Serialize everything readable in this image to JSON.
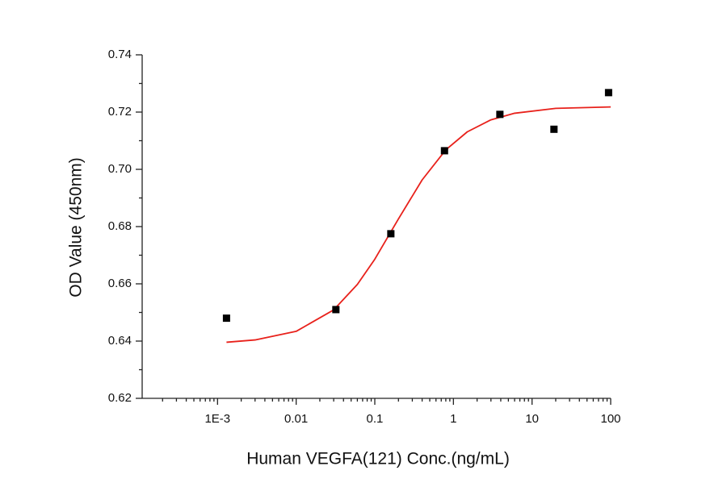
{
  "chart_data": {
    "type": "scatter",
    "x_label": "Human VEGFA(121) Conc.(ng/mL)",
    "y_label": "OD Value (450nm)",
    "x_log": true,
    "minor_ticks": true,
    "xlim": [
      0.00011,
      100
    ],
    "ylim": [
      0.62,
      0.74
    ],
    "xticks": [
      {
        "value": 0.001,
        "label": "1E-3"
      },
      0.01,
      0.1,
      1,
      10,
      100
    ],
    "yticks": [
      0.62,
      0.64,
      0.66,
      0.68,
      {
        "value": 0.7,
        "label": "0.70"
      },
      0.72,
      0.74
    ],
    "series": [
      {
        "kind": "points",
        "color": "#000000",
        "x": [
          0.0013,
          0.032,
          0.16,
          0.77,
          3.9,
          19,
          94
        ],
        "values": [
          0.648,
          0.651,
          0.6775,
          0.7065,
          0.7192,
          0.714,
          0.7268
        ]
      },
      {
        "kind": "line",
        "color": "#e8211b",
        "x": [
          0.0013,
          0.003,
          0.01,
          0.03,
          0.06,
          0.1,
          0.2,
          0.4,
          0.8,
          1.5,
          3,
          6,
          20,
          100
        ],
        "values": [
          0.6396,
          0.6404,
          0.6434,
          0.6509,
          0.6598,
          0.6686,
          0.6827,
          0.6963,
          0.7068,
          0.7131,
          0.7173,
          0.7196,
          0.7213,
          0.7218
        ]
      }
    ]
  }
}
